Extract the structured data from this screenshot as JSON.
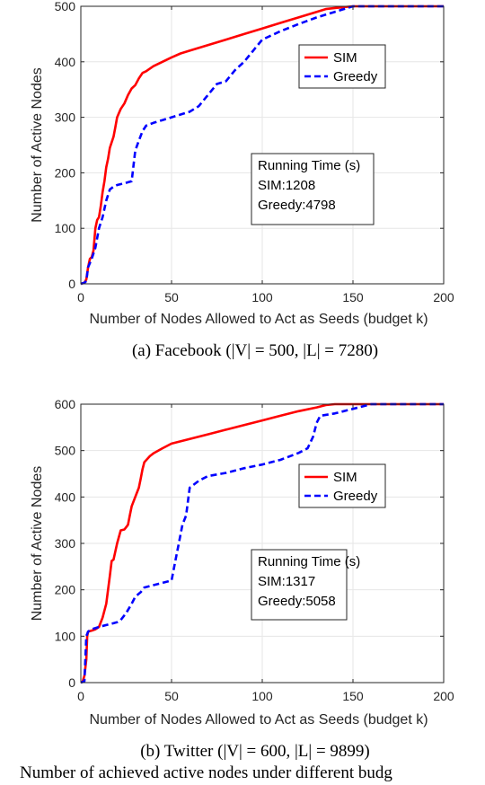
{
  "chart_data": [
    {
      "type": "line",
      "caption": "(a) Facebook (|V| = 500, |L| = 7280)",
      "xlabel": "Number of Nodes Allowed to Act as Seeds (budget k)",
      "ylabel": "Number of Active Nodes",
      "xlim": [
        0,
        200
      ],
      "ylim": [
        0,
        500
      ],
      "xticks": [
        0,
        50,
        100,
        150,
        200
      ],
      "yticks": [
        0,
        100,
        200,
        300,
        400,
        500
      ],
      "grid": true,
      "legend": "top-right",
      "annotation": [
        "Running Time (s)",
        "SIM:1208",
        "Greedy:4798"
      ],
      "series": [
        {
          "name": "SIM",
          "color": "#ff0000",
          "style": "solid",
          "points": [
            [
              0,
              0
            ],
            [
              2,
              2
            ],
            [
              3,
              8
            ],
            [
              4,
              30
            ],
            [
              5,
              45
            ],
            [
              6,
              48
            ],
            [
              7,
              60
            ],
            [
              8,
              100
            ],
            [
              9,
              115
            ],
            [
              10,
              120
            ],
            [
              11,
              140
            ],
            [
              12,
              165
            ],
            [
              13,
              185
            ],
            [
              14,
              210
            ],
            [
              15,
              225
            ],
            [
              16,
              245
            ],
            [
              18,
              265
            ],
            [
              19,
              282
            ],
            [
              20,
              300
            ],
            [
              22,
              315
            ],
            [
              24,
              325
            ],
            [
              26,
              340
            ],
            [
              28,
              352
            ],
            [
              30,
              358
            ],
            [
              32,
              370
            ],
            [
              34,
              380
            ],
            [
              36,
              383
            ],
            [
              40,
              392
            ],
            [
              45,
              400
            ],
            [
              50,
              408
            ],
            [
              55,
              415
            ],
            [
              60,
              420
            ],
            [
              70,
              430
            ],
            [
              80,
              440
            ],
            [
              90,
              450
            ],
            [
              100,
              460
            ],
            [
              110,
              470
            ],
            [
              120,
              480
            ],
            [
              130,
              490
            ],
            [
              135,
              495
            ],
            [
              140,
              497
            ],
            [
              150,
              500
            ],
            [
              200,
              500
            ]
          ]
        },
        {
          "name": "Greedy",
          "color": "#0000ff",
          "style": "dashed",
          "points": [
            [
              0,
              0
            ],
            [
              2,
              2
            ],
            [
              3,
              5
            ],
            [
              4,
              30
            ],
            [
              6,
              45
            ],
            [
              8,
              65
            ],
            [
              10,
              100
            ],
            [
              12,
              120
            ],
            [
              14,
              150
            ],
            [
              16,
              170
            ],
            [
              18,
              175
            ],
            [
              20,
              178
            ],
            [
              25,
              182
            ],
            [
              28,
              185
            ],
            [
              30,
              240
            ],
            [
              32,
              258
            ],
            [
              34,
              275
            ],
            [
              36,
              285
            ],
            [
              40,
              290
            ],
            [
              45,
              295
            ],
            [
              50,
              300
            ],
            [
              55,
              305
            ],
            [
              60,
              310
            ],
            [
              65,
              320
            ],
            [
              70,
              340
            ],
            [
              75,
              360
            ],
            [
              80,
              365
            ],
            [
              85,
              385
            ],
            [
              90,
              400
            ],
            [
              95,
              420
            ],
            [
              100,
              440
            ],
            [
              110,
              455
            ],
            [
              120,
              468
            ],
            [
              130,
              480
            ],
            [
              140,
              490
            ],
            [
              150,
              500
            ],
            [
              200,
              500
            ]
          ]
        }
      ]
    },
    {
      "type": "line",
      "caption": "(b) Twitter (|V| = 600, |L| = 9899)",
      "xlabel": "Number of Nodes Allowed to Act as Seeds (budget k)",
      "ylabel": "Number of Active Nodes",
      "xlim": [
        0,
        200
      ],
      "ylim": [
        0,
        600
      ],
      "xticks": [
        0,
        50,
        100,
        150,
        200
      ],
      "yticks": [
        0,
        100,
        200,
        300,
        400,
        500,
        600
      ],
      "grid": true,
      "legend": "middle-right",
      "annotation": [
        "Running Time (s)",
        "SIM:1317",
        "Greedy:5058"
      ],
      "series": [
        {
          "name": "SIM",
          "color": "#ff0000",
          "style": "solid",
          "points": [
            [
              0,
              0
            ],
            [
              1,
              2
            ],
            [
              2,
              15
            ],
            [
              3,
              50
            ],
            [
              3.5,
              100
            ],
            [
              4,
              110
            ],
            [
              6,
              112
            ],
            [
              8,
              115
            ],
            [
              10,
              120
            ],
            [
              12,
              140
            ],
            [
              14,
              170
            ],
            [
              15,
              200
            ],
            [
              16,
              230
            ],
            [
              17,
              262
            ],
            [
              18,
              265
            ],
            [
              20,
              300
            ],
            [
              22,
              328
            ],
            [
              24,
              330
            ],
            [
              25,
              335
            ],
            [
              26,
              340
            ],
            [
              27,
              360
            ],
            [
              28,
              380
            ],
            [
              30,
              400
            ],
            [
              32,
              420
            ],
            [
              33,
              440
            ],
            [
              34,
              460
            ],
            [
              35,
              475
            ],
            [
              38,
              488
            ],
            [
              40,
              494
            ],
            [
              45,
              505
            ],
            [
              50,
              515
            ],
            [
              60,
              525
            ],
            [
              70,
              535
            ],
            [
              80,
              545
            ],
            [
              90,
              555
            ],
            [
              100,
              565
            ],
            [
              110,
              575
            ],
            [
              120,
              585
            ],
            [
              130,
              593
            ],
            [
              135,
              598
            ],
            [
              140,
              600
            ],
            [
              200,
              600
            ]
          ]
        },
        {
          "name": "Greedy",
          "color": "#0000ff",
          "style": "dashed",
          "points": [
            [
              0,
              0
            ],
            [
              2,
              3
            ],
            [
              3,
              100
            ],
            [
              4,
              110
            ],
            [
              6,
              115
            ],
            [
              10,
              120
            ],
            [
              15,
              125
            ],
            [
              20,
              130
            ],
            [
              22,
              135
            ],
            [
              25,
              150
            ],
            [
              28,
              170
            ],
            [
              30,
              185
            ],
            [
              33,
              195
            ],
            [
              35,
              205
            ],
            [
              40,
              210
            ],
            [
              45,
              215
            ],
            [
              50,
              220
            ],
            [
              52,
              260
            ],
            [
              54,
              300
            ],
            [
              56,
              340
            ],
            [
              58,
              360
            ],
            [
              60,
              420
            ],
            [
              65,
              435
            ],
            [
              70,
              445
            ],
            [
              80,
              452
            ],
            [
              90,
              462
            ],
            [
              100,
              470
            ],
            [
              110,
              480
            ],
            [
              120,
              495
            ],
            [
              125,
              505
            ],
            [
              128,
              530
            ],
            [
              130,
              560
            ],
            [
              132,
              575
            ],
            [
              140,
              580
            ],
            [
              150,
              590
            ],
            [
              160,
              600
            ],
            [
              200,
              600
            ]
          ]
        }
      ]
    }
  ],
  "footer_text": "Number of achieved active nodes under different budg"
}
